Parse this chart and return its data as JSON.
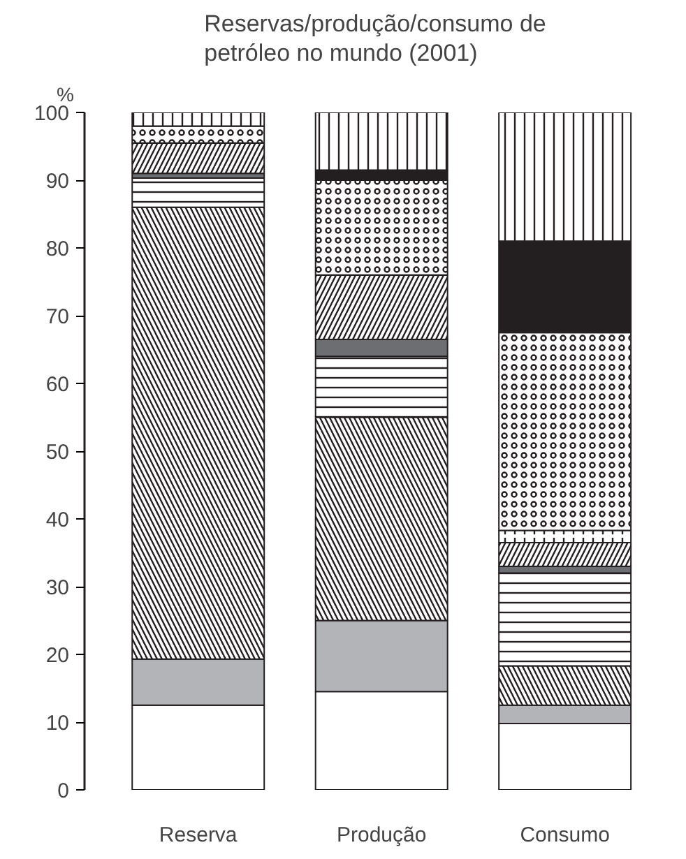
{
  "chart_data": {
    "type": "bar",
    "stacked": true,
    "title": "Reservas/produção/consumo de\npetróleo no mundo (2001)",
    "ylabel": "%",
    "categories": [
      "Reserva",
      "Produção",
      "Consumo"
    ],
    "ylim": [
      0,
      100
    ],
    "yticks": [
      0,
      10,
      20,
      30,
      40,
      50,
      60,
      70,
      80,
      90,
      100
    ],
    "grid": false,
    "series": [
      {
        "color": "#ffffff",
        "values": [
          12.5,
          14.5,
          9.8
        ]
      },
      {
        "color": "#b3b4b7",
        "values": [
          6.8,
          10.5,
          2.7
        ]
      },
      {
        "color": "#ffffff",
        "values": [
          66.7,
          30,
          5.8
        ]
      },
      {
        "color": "#ffffff",
        "values": [
          4.3,
          9,
          13.7
        ]
      },
      {
        "color": "#6d6e71",
        "values": [
          0.7,
          2.5,
          1
        ]
      },
      {
        "color": "#ffffff",
        "values": [
          4.5,
          9.5,
          3.5
        ]
      },
      {
        "color": "#ffffff",
        "values": [
          0,
          0,
          1.8
        ]
      },
      {
        "color": "#ffffff",
        "values": [
          2.5,
          14,
          29.2
        ]
      },
      {
        "color": "#231f20",
        "values": [
          0,
          1.5,
          13.5
        ]
      },
      {
        "color": "#ffffff",
        "values": [
          2,
          8.5,
          19
        ]
      }
    ]
  }
}
